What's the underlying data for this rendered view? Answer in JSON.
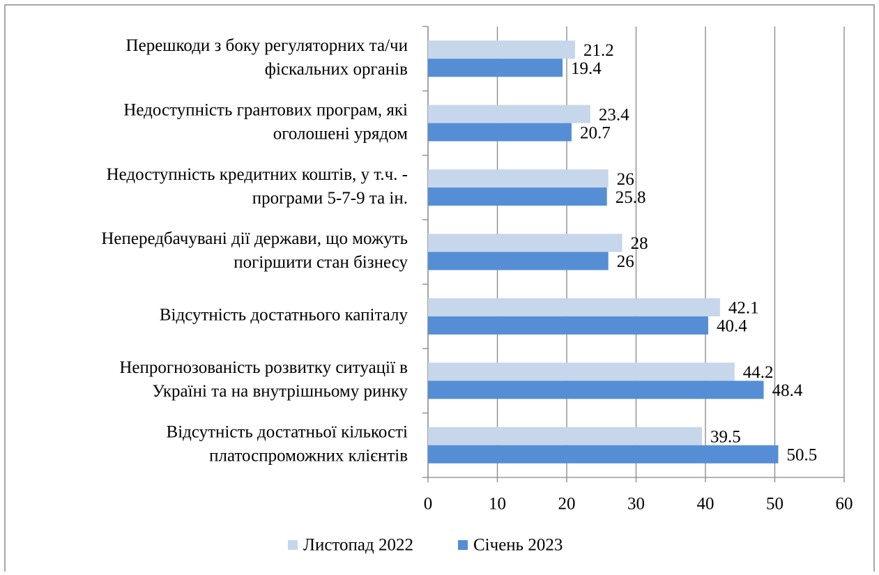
{
  "chart_data": {
    "type": "bar",
    "orientation": "horizontal",
    "categories": [
      [
        "Перешкоди з боку регуляторних та/чи",
        "фіскальних органів"
      ],
      [
        "Недоступність грантових програм, які",
        "оголошені урядом"
      ],
      [
        "Недоступність кредитних коштів, у т.ч. -",
        "програми 5-7-9 та ін."
      ],
      [
        "Непередбачувані дії держави, що можуть",
        "погіршити стан бізнесу"
      ],
      [
        "Відсутність  достатнього капіталу"
      ],
      [
        "Непрогнозованість розвитку ситуації в",
        "Україні та на внутрішньому ринку"
      ],
      [
        "Відсутність  достатньої кількості",
        "платоспроможних клієнтів"
      ]
    ],
    "series": [
      {
        "name": "Листопад 2022",
        "color": "#c6d6eb",
        "values": [
          21.2,
          23.4,
          26,
          28,
          42.1,
          44.2,
          39.5
        ]
      },
      {
        "name": "Січень 2023",
        "color": "#558ed5",
        "values": [
          19.4,
          20.7,
          25.8,
          26,
          40.4,
          48.4,
          50.5
        ]
      }
    ],
    "xlim": [
      0,
      60
    ],
    "xticks": [
      0,
      10,
      20,
      30,
      40,
      50,
      60
    ],
    "grid": true,
    "legend": "bottom"
  }
}
